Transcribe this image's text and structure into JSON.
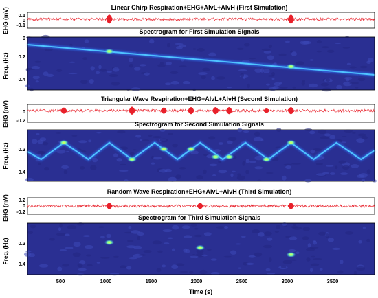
{
  "figure": {
    "xlabel": "Time (s)",
    "x_ticks": [
      "500",
      "1000",
      "1500",
      "2000",
      "2500",
      "3000",
      "3500"
    ]
  },
  "chart_data": [
    {
      "type": "line",
      "title": "Linear Chirp Respiration+EHG+AlvL+AlvH (First Simulation)",
      "xlabel": "",
      "ylabel": "EHG (mV)",
      "xlim": [
        100,
        3920
      ],
      "ylim": [
        -0.2,
        0.15
      ],
      "y_ticks": [
        "0.1",
        "0",
        "-0.1"
      ],
      "bursts": [
        {
          "time": 1000,
          "amp": 0.12
        },
        {
          "time": 3000,
          "amp": 0.12
        }
      ],
      "color": "#e8202a"
    },
    {
      "type": "heatmap",
      "title": "Spectrogram for First Simulation Signals",
      "ylabel": "Freq. (Hz)",
      "xlim": [
        100,
        3920
      ],
      "ylim": [
        0.15,
        0.5
      ],
      "y_ticks": [
        "0",
        "0.2",
        "0.4"
      ],
      "trend": [
        {
          "time": 100,
          "freq": 0.2
        },
        {
          "time": 3920,
          "freq": 0.4
        }
      ],
      "spots": [
        {
          "time": 1000,
          "freq": 0.245
        },
        {
          "time": 3000,
          "freq": 0.345
        }
      ]
    },
    {
      "type": "line",
      "title": "Triangular Wave Respiration+EHG+AlvL+AlvH (Second Simulation)",
      "ylabel": "EHG (mV)",
      "xlim": [
        100,
        3920
      ],
      "ylim": [
        -0.22,
        0.12
      ],
      "y_ticks": [
        "0",
        "-0.2"
      ],
      "bursts": [
        {
          "time": 500,
          "amp": 0.07
        },
        {
          "time": 1250,
          "amp": 0.09
        },
        {
          "time": 1600,
          "amp": 0.07
        },
        {
          "time": 1900,
          "amp": 0.08
        },
        {
          "time": 2170,
          "amp": 0.08
        },
        {
          "time": 2320,
          "amp": 0.08
        },
        {
          "time": 2730,
          "amp": 0.05
        },
        {
          "time": 3000,
          "amp": 0.08
        }
      ],
      "color": "#e8202a"
    },
    {
      "type": "heatmap",
      "title": "Spectrogram for Second Simulation Signals",
      "ylabel": "Freq. (Hz)",
      "xlim": [
        100,
        3920
      ],
      "ylim": [
        0.1,
        0.5
      ],
      "y_ticks": [
        "0.2",
        "0.4"
      ],
      "trend": [
        {
          "time": 100,
          "freq": 0.27
        },
        {
          "time": 250,
          "freq": 0.33
        },
        {
          "time": 500,
          "freq": 0.2
        },
        {
          "time": 770,
          "freq": 0.33
        },
        {
          "time": 1000,
          "freq": 0.2
        },
        {
          "time": 1250,
          "freq": 0.33
        },
        {
          "time": 1500,
          "freq": 0.2
        },
        {
          "time": 1750,
          "freq": 0.33
        },
        {
          "time": 2000,
          "freq": 0.2
        },
        {
          "time": 2250,
          "freq": 0.33
        },
        {
          "time": 2500,
          "freq": 0.2
        },
        {
          "time": 2750,
          "freq": 0.33
        },
        {
          "time": 3000,
          "freq": 0.2
        },
        {
          "time": 3250,
          "freq": 0.33
        },
        {
          "time": 3500,
          "freq": 0.2
        },
        {
          "time": 3770,
          "freq": 0.33
        },
        {
          "time": 3920,
          "freq": 0.26
        }
      ],
      "spots": [
        {
          "time": 500,
          "freq": 0.2
        },
        {
          "time": 1250,
          "freq": 0.33
        },
        {
          "time": 1600,
          "freq": 0.25
        },
        {
          "time": 1900,
          "freq": 0.25
        },
        {
          "time": 2170,
          "freq": 0.31
        },
        {
          "time": 2320,
          "freq": 0.31
        },
        {
          "time": 2730,
          "freq": 0.33
        },
        {
          "time": 3000,
          "freq": 0.2
        }
      ]
    },
    {
      "type": "line",
      "title": "Random Wave Respiration+EHG+AlvL+AlvH (Third Simulation)",
      "ylabel": "EHG (mV)",
      "xlim": [
        100,
        3920
      ],
      "ylim": [
        -0.22,
        0.22
      ],
      "y_ticks": [
        "0.2",
        "0",
        "-0.2"
      ],
      "bursts": [
        {
          "time": 1000,
          "amp": 0.1
        },
        {
          "time": 2000,
          "amp": 0.1
        },
        {
          "time": 3000,
          "amp": 0.1
        }
      ],
      "color": "#e8202a"
    },
    {
      "type": "heatmap",
      "title": "Spectrogram for Third Simulation Signals",
      "ylabel": "Freq. (Hz)",
      "xlim": [
        100,
        3920
      ],
      "ylim": [
        0.1,
        0.5
      ],
      "y_ticks": [
        "0.2",
        "0.4"
      ],
      "trend": [],
      "spots": [
        {
          "time": 1000,
          "freq": 0.25
        },
        {
          "time": 2000,
          "freq": 0.29
        },
        {
          "time": 3000,
          "freq": 0.345
        }
      ]
    }
  ]
}
